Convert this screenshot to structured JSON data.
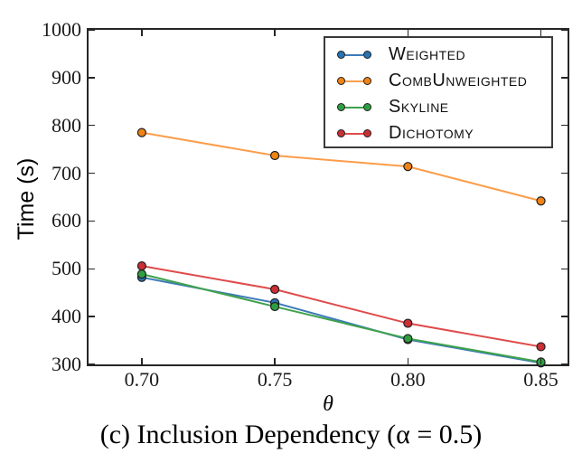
{
  "figure": {
    "ylabel": "Time (s)",
    "xlabel": "θ",
    "caption": "(c) Inclusion Dependency (α = 0.5)"
  },
  "chart_data": {
    "type": "line",
    "title": "",
    "xlabel": "θ",
    "ylabel": "Time (s)",
    "x": [
      0.7,
      0.75,
      0.8,
      0.85
    ],
    "x_tick_labels": [
      "0.70",
      "0.75",
      "0.80",
      "0.85"
    ],
    "y_ticks": [
      300,
      400,
      500,
      600,
      700,
      800,
      900,
      1000
    ],
    "y_tick_labels": [
      "300",
      "400",
      "500",
      "600",
      "700",
      "800",
      "900",
      "1000"
    ],
    "xlim": [
      0.68,
      0.86
    ],
    "ylim": [
      300,
      1000
    ],
    "grid": false,
    "legend_position": "upper right",
    "marker": "circle",
    "marker_edge_color": "#1f1f1f",
    "series": [
      {
        "name": "Weighted",
        "values": [
          482,
          429,
          352,
          303
        ],
        "line_color": "#3c7ab8",
        "marker_color": "#2873b2"
      },
      {
        "name": "CombUnweighted",
        "values": [
          785,
          737,
          714,
          642
        ],
        "line_color": "#fb9d4b",
        "marker_color": "#f08315"
      },
      {
        "name": "Skyline",
        "values": [
          489,
          421,
          354,
          305
        ],
        "line_color": "#3fa24c",
        "marker_color": "#2f9e41"
      },
      {
        "name": "Dichotomy",
        "values": [
          506,
          457,
          386,
          337
        ],
        "line_color": "#e04b4b",
        "marker_color": "#cb2f34"
      }
    ]
  }
}
